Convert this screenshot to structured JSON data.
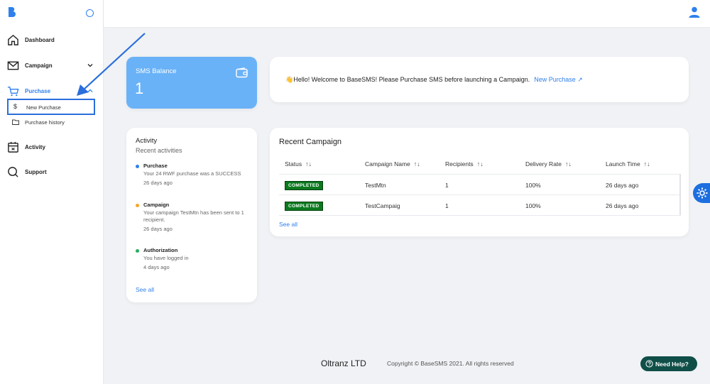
{
  "colors": {
    "accent": "#2f80ed",
    "balance_card": "#6ab2f7",
    "badge_completed": "#0b7a1e",
    "help_button": "#0f4f48"
  },
  "sidebar": {
    "items": [
      {
        "label": "Dashboard",
        "icon": "home-icon"
      },
      {
        "label": "Campaign",
        "icon": "mail-icon"
      },
      {
        "label": "Purchase",
        "icon": "cart-icon"
      },
      {
        "label": "Activity",
        "icon": "calendar-icon"
      },
      {
        "label": "Support",
        "icon": "chat-icon"
      }
    ],
    "purchase_subitems": [
      {
        "label": "New Purchase",
        "icon": "dollar-icon"
      },
      {
        "label": "Purchase history",
        "icon": "folder-icon"
      }
    ]
  },
  "balance": {
    "title": "SMS Balance",
    "value": "1"
  },
  "welcome": {
    "message": "👋Hello! Welcome to BaseSMS! Please Purchase SMS before launching a Campaign.",
    "link_label": "New Purchase ↗"
  },
  "activity": {
    "title": "Activity",
    "subtitle": "Recent activities",
    "entries": [
      {
        "title": "Purchase",
        "desc": "Your 24 RWF purchase was a SUCCESS",
        "time": "26 days ago",
        "color": "#2f80ed"
      },
      {
        "title": "Campaign",
        "desc": "Your campaign TestMtn has been sent to 1 recipient.",
        "time": "26 days ago",
        "color": "#f5a623"
      },
      {
        "title": "Authorization",
        "desc": "You have logged in",
        "time": "4 days ago",
        "color": "#27ae60"
      }
    ],
    "see_all": "See all"
  },
  "campaigns": {
    "title": "Recent Campaign",
    "columns": [
      "Status",
      "Campaign Name",
      "Recipients",
      "Delivery Rate",
      "Launch Time"
    ],
    "sort_glyph": "↑↓",
    "rows": [
      {
        "status": "COMPLETED",
        "name": "TestMtn",
        "recipients": "1",
        "rate": "100%",
        "time": "26 days ago"
      },
      {
        "status": "COMPLETED",
        "name": "TestCampaig",
        "recipients": "1",
        "rate": "100%",
        "time": "26 days ago"
      }
    ],
    "see_all": "See all"
  },
  "footer": {
    "brand": "Oltranz LTD",
    "copyright": "Copyright © BaseSMS 2021. All rights reserved",
    "help_label": "Need Help?"
  }
}
